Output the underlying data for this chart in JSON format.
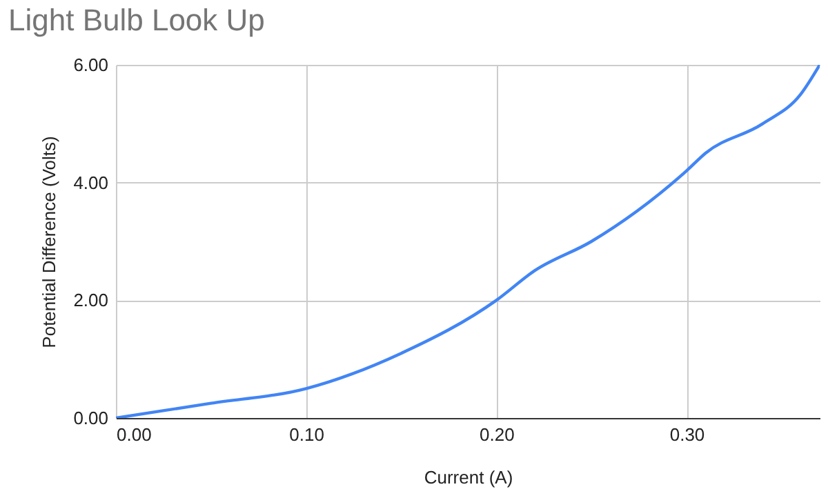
{
  "chart_data": {
    "type": "line",
    "title": "Light Bulb Look Up",
    "xlabel": "Current (A)",
    "ylabel": "Potential Difference (Volts)",
    "x": [
      0,
      0.05,
      0.1,
      0.15,
      0.2,
      0.22,
      0.25,
      0.3,
      0.31,
      0.34,
      0.36,
      0.37
    ],
    "series": [
      {
        "color": "#4285f4",
        "values": [
          0,
          0.25,
          0.5,
          1.1,
          2.0,
          2.5,
          3.0,
          4.2,
          4.5,
          5.0,
          5.5,
          6.0
        ]
      }
    ],
    "xlim": [
      0,
      0.37
    ],
    "ylim": [
      0,
      6
    ],
    "xticks": [
      {
        "value": 0,
        "label": "0.00"
      },
      {
        "value": 0.1,
        "label": "0.10"
      },
      {
        "value": 0.2,
        "label": "0.20"
      },
      {
        "value": 0.3,
        "label": "0.30"
      }
    ],
    "yticks": [
      {
        "value": 0,
        "label": "0.00"
      },
      {
        "value": 2,
        "label": "2.00"
      },
      {
        "value": 4,
        "label": "4.00"
      },
      {
        "value": 6,
        "label": "6.00"
      }
    ],
    "grid": true,
    "line_style": "solid",
    "marker": "none"
  }
}
